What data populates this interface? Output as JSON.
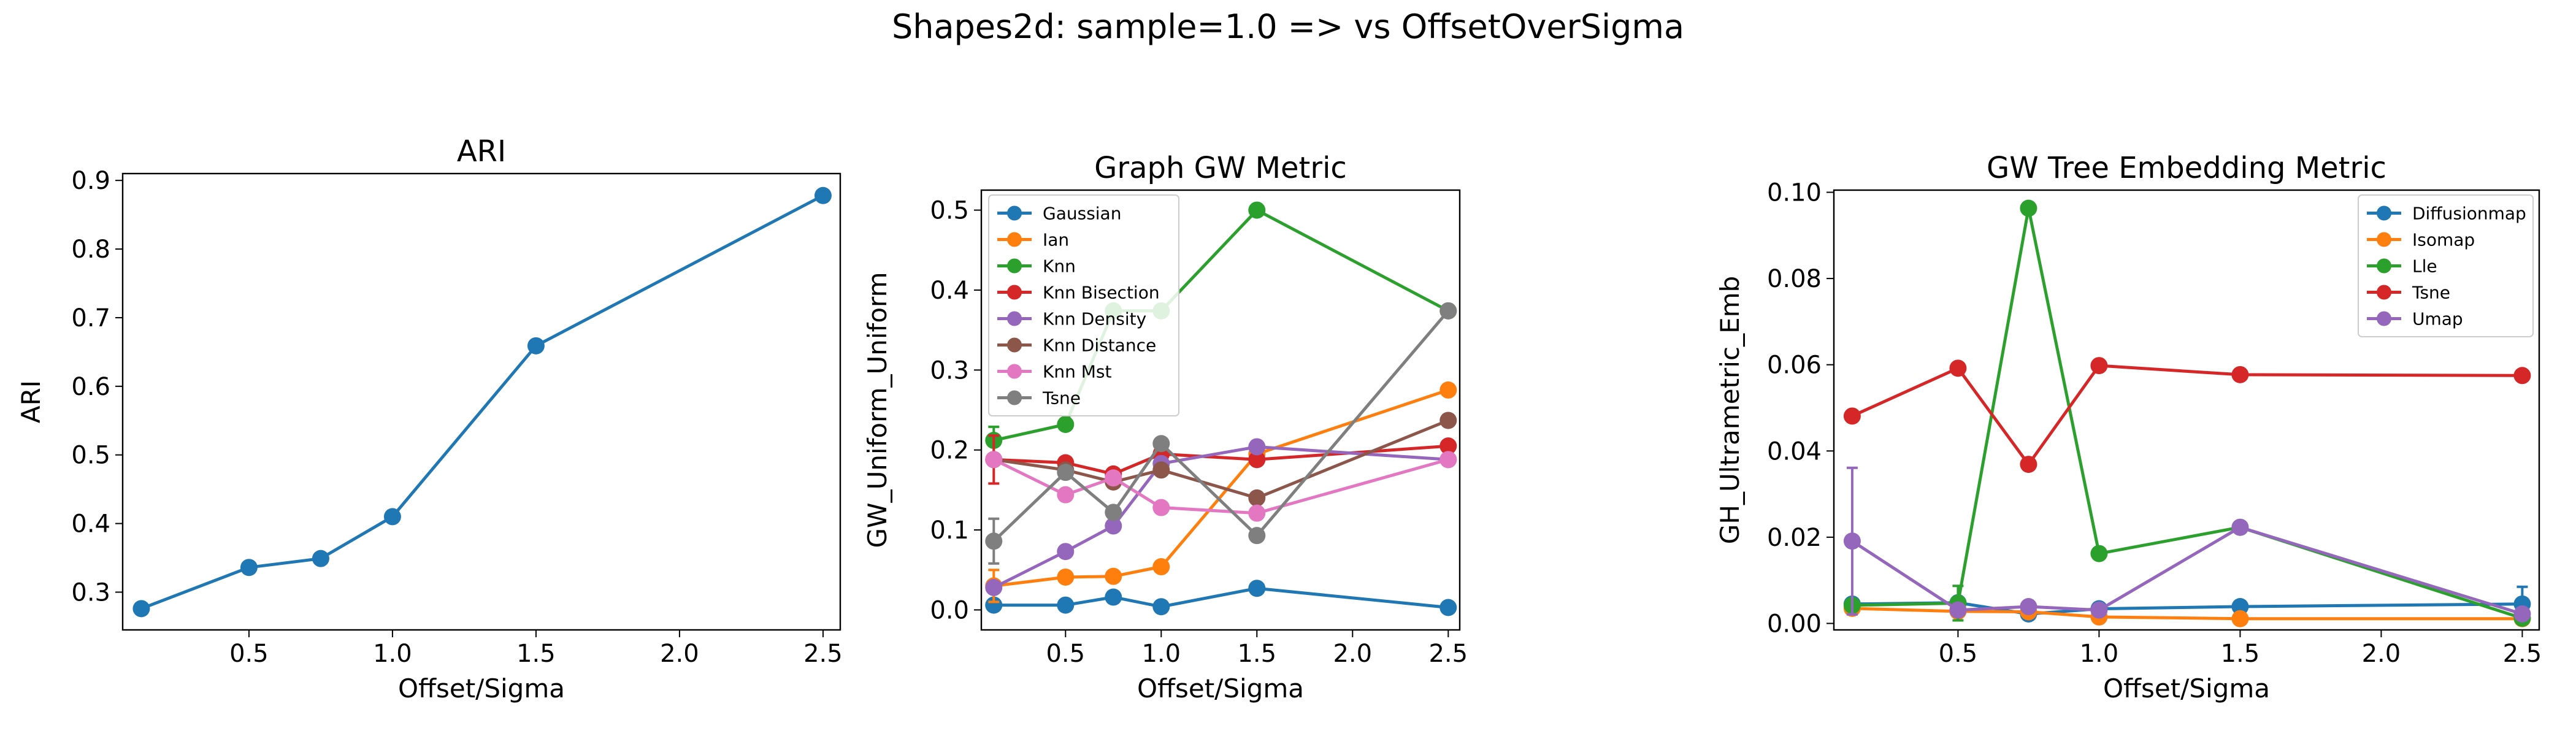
{
  "suptitle": "Shapes2d: sample=1.0 => vs OffsetOverSigma",
  "chart_data": [
    {
      "type": "line",
      "title": "ARI",
      "xlabel": "Offset/Sigma",
      "ylabel": "ARI",
      "xlim": [
        0.06,
        2.56
      ],
      "ylim": [
        0.245,
        0.91
      ],
      "xticks": [
        0.5,
        1.0,
        1.5,
        2.0,
        2.5
      ],
      "xtick_labels": [
        "0.5",
        "1.0",
        "1.5",
        "2.0",
        "2.5"
      ],
      "yticks": [
        0.3,
        0.4,
        0.5,
        0.6,
        0.7,
        0.8,
        0.9
      ],
      "ytick_labels": [
        "0.3",
        "0.4",
        "0.5",
        "0.6",
        "0.7",
        "0.8",
        "0.9"
      ],
      "x": [
        0.125,
        0.5,
        0.75,
        1.0,
        1.5,
        2.5
      ],
      "series": [
        {
          "color": "#1f77b4",
          "values": [
            0.276,
            0.336,
            0.349,
            0.41,
            0.659,
            0.878
          ]
        }
      ],
      "legend": null
    },
    {
      "type": "line",
      "title": "Graph GW Metric",
      "xlabel": "Offset/Sigma",
      "ylabel": "GW_Uniform_Uniform",
      "xlim": [
        0.06,
        2.56
      ],
      "ylim": [
        -0.025,
        0.525
      ],
      "xticks": [
        0.5,
        1.0,
        1.5,
        2.0,
        2.5
      ],
      "xtick_labels": [
        "0.5",
        "1.0",
        "1.5",
        "2.0",
        "2.5"
      ],
      "yticks": [
        0.0,
        0.1,
        0.2,
        0.3,
        0.4,
        0.5
      ],
      "ytick_labels": [
        "0.0",
        "0.1",
        "0.2",
        "0.3",
        "0.4",
        "0.5"
      ],
      "x": [
        0.125,
        0.5,
        0.75,
        1.0,
        1.5,
        2.5
      ],
      "legend": "upper left",
      "series": [
        {
          "name": "Gaussian",
          "color": "#1f77b4",
          "values": [
            0.006,
            0.006,
            0.016,
            0.004,
            0.027,
            0.003
          ]
        },
        {
          "name": "Ian",
          "color": "#ff7f0e",
          "values": [
            0.03,
            0.041,
            0.042,
            0.054,
            0.195,
            0.275
          ],
          "err": [
            0.02,
            0,
            0,
            0,
            0,
            0
          ]
        },
        {
          "name": "Knn",
          "color": "#2ca02c",
          "values": [
            0.212,
            0.232,
            0.374,
            0.374,
            0.5,
            0.374
          ],
          "err": [
            0.017,
            0,
            0,
            0,
            0,
            0
          ]
        },
        {
          "name": "Knn Bisection",
          "color": "#d62728",
          "values": [
            0.188,
            0.184,
            0.17,
            0.195,
            0.188,
            0.205
          ],
          "err": [
            0.03,
            0,
            0,
            0,
            0,
            0
          ]
        },
        {
          "name": "Knn Density",
          "color": "#9467bd",
          "values": [
            0.028,
            0.073,
            0.105,
            0.183,
            0.204,
            0.188
          ]
        },
        {
          "name": "Knn Distance",
          "color": "#8c564b",
          "values": [
            0.188,
            0.175,
            0.16,
            0.175,
            0.14,
            0.237
          ]
        },
        {
          "name": "Knn Mst",
          "color": "#e377c2",
          "values": [
            0.188,
            0.144,
            0.165,
            0.128,
            0.121,
            0.188
          ]
        },
        {
          "name": "Tsne",
          "color": "#7f7f7f",
          "values": [
            0.086,
            0.172,
            0.122,
            0.208,
            0.093,
            0.374
          ],
          "err": [
            0.028,
            0,
            0,
            0,
            0,
            0
          ]
        }
      ]
    },
    {
      "type": "line",
      "title": "GW Tree Embedding Metric",
      "xlabel": "Offset/Sigma",
      "ylabel": "GH_Ultrametric_Emb",
      "xlim": [
        0.06,
        2.56
      ],
      "ylim": [
        -0.0015,
        0.1005
      ],
      "xticks": [
        0.5,
        1.0,
        1.5,
        2.0,
        2.5
      ],
      "xtick_labels": [
        "0.5",
        "1.0",
        "1.5",
        "2.0",
        "2.5"
      ],
      "yticks": [
        0.0,
        0.02,
        0.04,
        0.06,
        0.08,
        0.1
      ],
      "ytick_labels": [
        "0.00",
        "0.02",
        "0.04",
        "0.06",
        "0.08",
        "0.10"
      ],
      "x": [
        0.125,
        0.5,
        0.75,
        1.0,
        1.5,
        2.5
      ],
      "legend": "upper right",
      "series": [
        {
          "name": "Diffusionmap",
          "color": "#1f77b4",
          "values": [
            0.0045,
            0.0048,
            0.0022,
            0.0034,
            0.0039,
            0.0045
          ],
          "err": [
            0,
            0,
            0,
            0,
            0,
            0.004
          ]
        },
        {
          "name": "Isomap",
          "color": "#ff7f0e",
          "values": [
            0.0035,
            0.0028,
            0.0027,
            0.0015,
            0.0011,
            0.0011
          ]
        },
        {
          "name": "Lle",
          "color": "#2ca02c",
          "values": [
            0.0042,
            0.0047,
            0.0963,
            0.0162,
            0.0223,
            0.0012
          ],
          "err": [
            0,
            0.004,
            0,
            0,
            0,
            0
          ]
        },
        {
          "name": "Tsne",
          "color": "#d62728",
          "values": [
            0.0481,
            0.0592,
            0.0369,
            0.0598,
            0.0577,
            0.0575
          ]
        },
        {
          "name": "Umap",
          "color": "#9467bd",
          "values": [
            0.0191,
            0.0031,
            0.0039,
            0.0031,
            0.0223,
            0.0022
          ],
          "err": [
            0.017,
            0,
            0,
            0,
            0,
            0
          ]
        }
      ]
    }
  ]
}
